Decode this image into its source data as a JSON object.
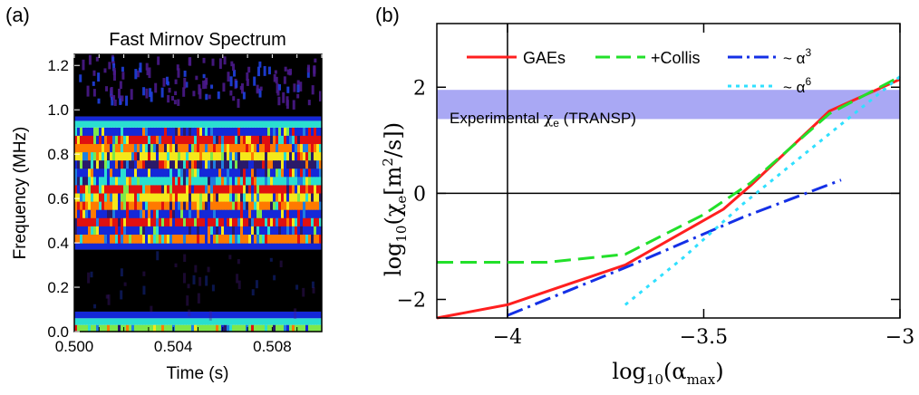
{
  "panel_a": {
    "label": "(a)",
    "title": "Fast Mirnov Spectrum",
    "ylabel": "Frequency (MHz)",
    "xlabel": "Time (s)",
    "xticks": [
      "0.500",
      "0.504",
      "0.508"
    ],
    "yticks": [
      "0.0",
      "0.2",
      "0.4",
      "0.6",
      "0.8",
      "1.0",
      "1.2"
    ]
  },
  "panel_b": {
    "label": "(b)",
    "band_label_main": "Experimental ",
    "band_label_chi": "χ",
    "band_label_sub": "e",
    "band_label_tail": " (TRANSP)",
    "legend": [
      {
        "label": "GAEs",
        "color": "#ff1f1f"
      },
      {
        "label": "+Collis",
        "color": "#22e02a"
      },
      {
        "label": "~ α",
        "sup": "3",
        "color": "#1430e6"
      },
      {
        "label": "~ α",
        "sup": "6",
        "color": "#30e0ff"
      }
    ],
    "xticks": [
      "-4",
      "-3.5",
      "-3"
    ],
    "yticks": [
      "-2",
      "0",
      "2"
    ],
    "ylabel_main": "log",
    "ylabel_sub": "10",
    "ylabel_rest": "(χ",
    "ylabel_e": "e",
    "ylabel_units": "[m",
    "ylabel_units_sup": "2",
    "ylabel_units_end": "/s])",
    "xlabel_main": "log",
    "xlabel_sub": "10",
    "xlabel_rest": "(α",
    "xlabel_max": "max",
    "xlabel_end": ")"
  },
  "chart_data": [
    {
      "type": "heatmap",
      "title": "Fast Mirnov Spectrum",
      "xlabel": "Time (s)",
      "ylabel": "Frequency (MHz)",
      "xlim": [
        0.5,
        0.51
      ],
      "ylim": [
        0.0,
        1.25
      ],
      "bands": [
        {
          "f0": 0.0,
          "f1": 0.03,
          "level": "mixed"
        },
        {
          "f0": 0.03,
          "f1": 0.06,
          "level": "cyan"
        },
        {
          "f0": 0.06,
          "f1": 0.09,
          "level": "blue"
        },
        {
          "f0": 0.09,
          "f1": 0.37,
          "level": "black"
        },
        {
          "f0": 0.37,
          "f1": 0.4,
          "level": "blue"
        },
        {
          "f0": 0.4,
          "f1": 0.92,
          "level": "mixed"
        },
        {
          "f0": 0.92,
          "f1": 0.95,
          "level": "cyan"
        },
        {
          "f0": 0.95,
          "f1": 0.97,
          "level": "blue"
        },
        {
          "f0": 0.97,
          "f1": 1.25,
          "level": "black-purple"
        }
      ]
    },
    {
      "type": "line",
      "xlabel": "log10(αmax)",
      "ylabel": "log10(χe[m^2/s])",
      "xlim": [
        -4.18,
        -3.0
      ],
      "ylim": [
        -2.35,
        3.2
      ],
      "band": {
        "y0": 1.4,
        "y1": 1.95,
        "label": "Experimental χe (TRANSP)",
        "color": "#a9a8f4"
      },
      "series": [
        {
          "name": "GAEs",
          "color": "#ff1f1f",
          "style": "solid",
          "x": [
            -4.18,
            -4.0,
            -3.7,
            -3.45,
            -3.38,
            -3.18,
            -3.0
          ],
          "y": [
            -2.35,
            -2.1,
            -1.35,
            -0.3,
            0.15,
            1.55,
            2.15
          ]
        },
        {
          "name": "+Collis",
          "color": "#22e02a",
          "style": "dash",
          "x": [
            -4.18,
            -3.9,
            -3.7,
            -3.5,
            -3.38,
            -3.18,
            -3.0
          ],
          "y": [
            -1.3,
            -1.3,
            -1.15,
            -0.4,
            0.2,
            1.5,
            2.2
          ]
        },
        {
          "name": "~ α3",
          "color": "#1430e6",
          "style": "dashdot",
          "x": [
            -4.0,
            -3.7,
            -3.4,
            -3.15
          ],
          "y": [
            -2.3,
            -1.4,
            -0.45,
            0.25
          ]
        },
        {
          "name": "~ α6",
          "color": "#30e0ff",
          "style": "dot",
          "x": [
            -3.7,
            -3.55,
            -3.4,
            -3.2,
            -3.0
          ],
          "y": [
            -2.1,
            -1.2,
            -0.2,
            1.0,
            2.2
          ]
        }
      ]
    }
  ]
}
